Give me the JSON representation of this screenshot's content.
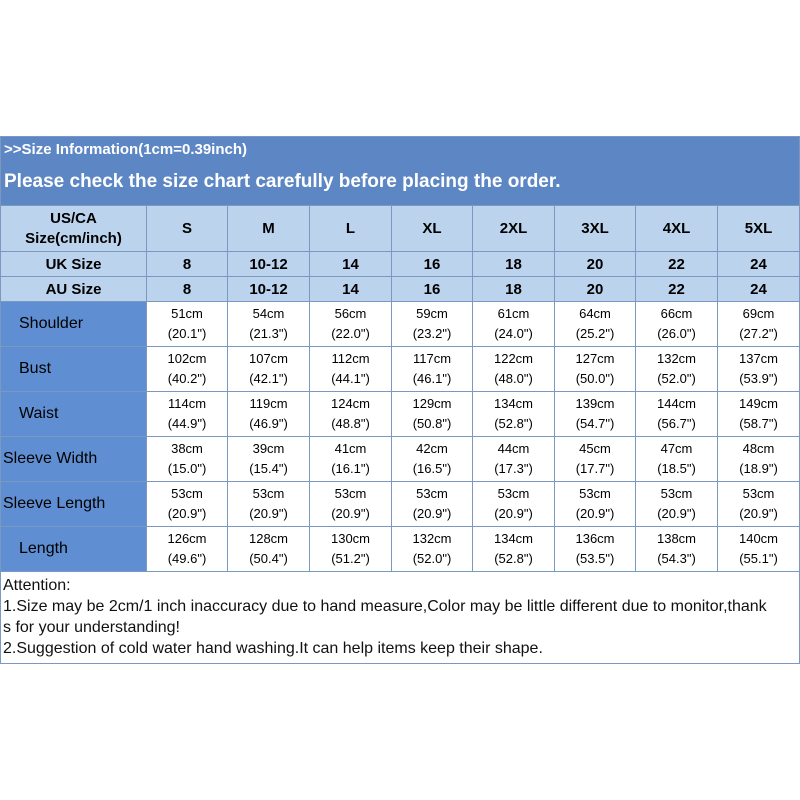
{
  "banner": {
    "line1": ">>Size Information(1cm=0.39inch)",
    "line2": "Please check the size chart carefully before placing the order."
  },
  "table": {
    "us_label_line1": "US/CA",
    "us_label_line2": "Size(cm/inch)",
    "sizes": [
      "S",
      "M",
      "L",
      "XL",
      "2XL",
      "3XL",
      "4XL",
      "5XL"
    ],
    "uk": {
      "label": "UK Size",
      "values": [
        "8",
        "10-12",
        "14",
        "16",
        "18",
        "20",
        "22",
        "24"
      ]
    },
    "au": {
      "label": "AU Size",
      "values": [
        "8",
        "10-12",
        "14",
        "16",
        "18",
        "20",
        "22",
        "24"
      ]
    },
    "rows": [
      {
        "label": "Shoulder",
        "cm": [
          "51cm",
          "54cm",
          "56cm",
          "59cm",
          "61cm",
          "64cm",
          "66cm",
          "69cm"
        ],
        "inch": [
          "(20.1\")",
          "(21.3\")",
          "(22.0\")",
          "(23.2\")",
          "(24.0\")",
          "(25.2\")",
          "(26.0\")",
          "(27.2\")"
        ]
      },
      {
        "label": "Bust",
        "cm": [
          "102cm",
          "107cm",
          "112cm",
          "117cm",
          "122cm",
          "127cm",
          "132cm",
          "137cm"
        ],
        "inch": [
          "(40.2\")",
          "(42.1\")",
          "(44.1\")",
          "(46.1\")",
          "(48.0\")",
          "(50.0\")",
          "(52.0\")",
          "(53.9\")"
        ]
      },
      {
        "label": "Waist",
        "cm": [
          "114cm",
          "119cm",
          "124cm",
          "129cm",
          "134cm",
          "139cm",
          "144cm",
          "149cm"
        ],
        "inch": [
          "(44.9\")",
          "(46.9\")",
          "(48.8\")",
          "(50.8\")",
          "(52.8\")",
          "(54.7\")",
          "(56.7\")",
          "(58.7\")"
        ]
      },
      {
        "label": "Sleeve Width",
        "cm": [
          "38cm",
          "39cm",
          "41cm",
          "42cm",
          "44cm",
          "45cm",
          "47cm",
          "48cm"
        ],
        "inch": [
          "(15.0\")",
          "(15.4\")",
          "(16.1\")",
          "(16.5\")",
          "(17.3\")",
          "(17.7\")",
          "(18.5\")",
          "(18.9\")"
        ]
      },
      {
        "label": "Sleeve Length",
        "cm": [
          "53cm",
          "53cm",
          "53cm",
          "53cm",
          "53cm",
          "53cm",
          "53cm",
          "53cm"
        ],
        "inch": [
          "(20.9\")",
          "(20.9\")",
          "(20.9\")",
          "(20.9\")",
          "(20.9\")",
          "(20.9\")",
          "(20.9\")",
          "(20.9\")"
        ]
      },
      {
        "label": "Length",
        "cm": [
          "126cm",
          "128cm",
          "130cm",
          "132cm",
          "134cm",
          "136cm",
          "138cm",
          "140cm"
        ],
        "inch": [
          "(49.6\")",
          "(50.4\")",
          "(51.2\")",
          "(52.0\")",
          "(52.8\")",
          "(53.5\")",
          "(54.3\")",
          "(55.1\")"
        ]
      }
    ]
  },
  "notes": {
    "line1": "Attention:",
    "line2": "1.Size may be 2cm/1 inch inaccuracy due to hand measure,Color may be little different due to monitor,thank",
    "line3": "s for your understanding!",
    "line4": "2.Suggestion of cold water hand washing.It can help items keep their shape."
  },
  "colors": {
    "banner_bg": "#5d87c4",
    "header_bg": "#bcd3ee",
    "label_bg": "#5f8fd2",
    "border": "#7a98c0"
  }
}
